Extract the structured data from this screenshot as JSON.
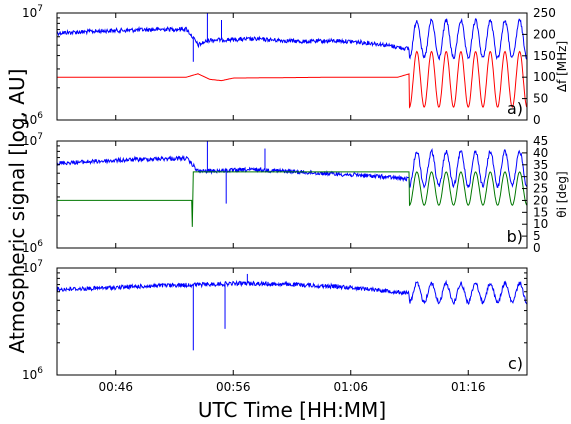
{
  "chart_data": {
    "type": "line",
    "xlabel": "UTC Time [HH:MM]",
    "ylabel": "Atmospheric signal [log, AU]",
    "x_range": [
      "00:41",
      "01:21"
    ],
    "x_ticks": [
      "00:46",
      "00:56",
      "01:06",
      "01:16"
    ],
    "grid": false,
    "panels": [
      {
        "id": "a)",
        "left_yscale": "log",
        "left_yticks": [
          "10",
          "10"
        ],
        "left_ytick_exponents": [
          "7",
          "6"
        ],
        "left_ylim": [
          1000000,
          10000000
        ],
        "right_ylabel": "Δf [MHz]",
        "right_ylim": [
          0,
          250
        ],
        "right_yticks": [
          "0",
          "50",
          "100",
          "150",
          "200",
          "250"
        ],
        "series": [
          {
            "color": "#0000ff",
            "axis": "left",
            "points": [
              [
                "00:41",
                6500000
              ],
              [
                "00:45",
                6800000
              ],
              [
                "00:49",
                7000000
              ],
              [
                "00:52",
                7100000
              ],
              [
                "00:53",
                5000000
              ],
              [
                "00:54",
                5600000
              ],
              [
                "00:58",
                5700000
              ],
              [
                "01:02",
                5400000
              ],
              [
                "01:05",
                5500000
              ],
              [
                "01:08",
                5200000
              ],
              [
                "01:11",
                4600000
              ],
              [
                "01:13",
                5500000
              ],
              [
                "01:16",
                6100000
              ],
              [
                "01:21",
                6400000
              ]
            ],
            "oscillation": {
              "start": "01:11",
              "end": "01:21",
              "min": 3800000,
              "max": 8500000,
              "cycles": 8
            }
          },
          {
            "color": "#ff0000",
            "axis": "right",
            "points": [
              [
                "00:41",
                100
              ],
              [
                "00:52",
                100
              ],
              [
                "00:53",
                108
              ],
              [
                "00:54",
                95
              ],
              [
                "00:55",
                92
              ],
              [
                "00:56",
                98
              ],
              [
                "01:05",
                100
              ],
              [
                "01:10",
                100
              ],
              [
                "01:11",
                108
              ]
            ],
            "oscillation": {
              "start": "01:11",
              "end": "01:21",
              "min": 30,
              "max": 160,
              "cycles": 8
            }
          }
        ]
      },
      {
        "id": "b)",
        "left_yscale": "log",
        "left_yticks": [
          "10",
          "10"
        ],
        "left_ytick_exponents": [
          "7",
          "6"
        ],
        "left_ylim": [
          1000000,
          10000000
        ],
        "right_ylabel": "θi [deg]",
        "right_ylim": [
          0,
          45
        ],
        "right_yticks": [
          "0",
          "5",
          "10",
          "15",
          "20",
          "25",
          "30",
          "35",
          "40",
          "45"
        ],
        "series": [
          {
            "color": "#0000ff",
            "axis": "left",
            "points": [
              [
                "00:41",
                6200000
              ],
              [
                "00:45",
                6500000
              ],
              [
                "00:49",
                6800000
              ],
              [
                "00:52",
                6900000
              ],
              [
                "00:53",
                5200000
              ],
              [
                "00:58",
                5400000
              ],
              [
                "01:02",
                5100000
              ],
              [
                "01:08",
                4700000
              ],
              [
                "01:11",
                4400000
              ],
              [
                "01:14",
                5200000
              ],
              [
                "01:17",
                6000000
              ],
              [
                "01:21",
                6700000
              ]
            ],
            "oscillation": {
              "start": "01:11",
              "end": "01:21",
              "min": 3800000,
              "max": 8000000,
              "cycles": 8
            }
          },
          {
            "color": "#007700",
            "axis": "right",
            "points": [
              [
                "00:41",
                20
              ],
              [
                "00:52.5",
                20
              ],
              [
                "00:52.5",
                6
              ],
              [
                "00:52.6",
                32
              ],
              [
                "01:11",
                32
              ]
            ],
            "oscillation": {
              "start": "01:11",
              "end": "01:21",
              "min": 18,
              "max": 32,
              "cycles": 8
            }
          }
        ]
      },
      {
        "id": "c)",
        "left_yscale": "log",
        "left_yticks": [
          "10",
          "10"
        ],
        "left_ytick_exponents": [
          "7",
          "6"
        ],
        "left_ylim": [
          1000000,
          10000000
        ],
        "series": [
          {
            "color": "#0000ff",
            "axis": "left",
            "points": [
              [
                "00:41",
                6300000
              ],
              [
                "00:45",
                6500000
              ],
              [
                "00:49",
                6800000
              ],
              [
                "00:53",
                7000000
              ],
              [
                "00:57",
                7200000
              ],
              [
                "01:01",
                7000000
              ],
              [
                "01:05",
                6700000
              ],
              [
                "01:08",
                6300000
              ],
              [
                "01:11",
                5800000
              ],
              [
                "01:13",
                5200000
              ],
              [
                "01:16",
                5900000
              ],
              [
                "01:21",
                6600000
              ]
            ],
            "oscillation": {
              "start": "01:11",
              "end": "01:21",
              "min": 4800000,
              "max": 7200000,
              "cycles": 8
            }
          }
        ]
      }
    ]
  }
}
